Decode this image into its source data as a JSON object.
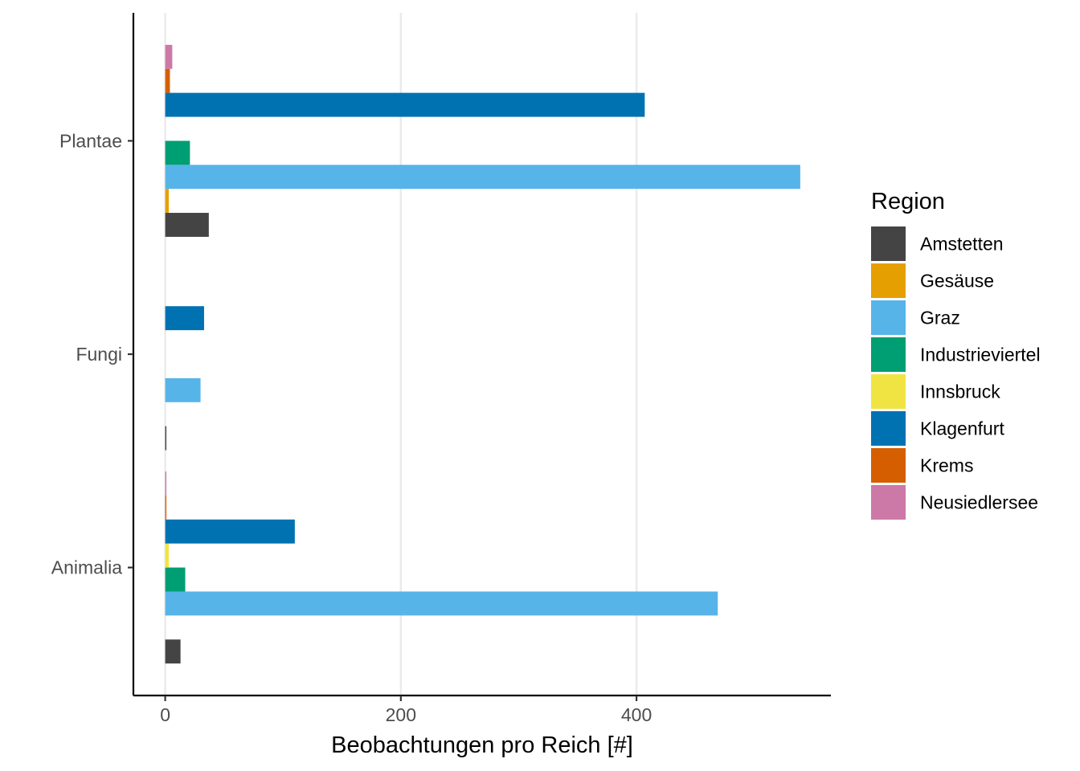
{
  "chart_data": {
    "type": "bar",
    "orientation": "horizontal",
    "position": "dodge",
    "categories": [
      "Animalia",
      "Fungi",
      "Plantae"
    ],
    "xlabel": "Beobachtungen pro Reich [#]",
    "ylabel": "",
    "xlim": [
      -27,
      565
    ],
    "xticks": [
      0,
      200,
      400
    ],
    "xtick_labels": [
      "0",
      "200",
      "400"
    ],
    "grid": "vertical major lines only",
    "legend": {
      "title": "Region",
      "placement": "right"
    },
    "series": [
      {
        "name": "Amstetten",
        "color": "#444444",
        "values": [
          13,
          1,
          37
        ]
      },
      {
        "name": "Gesäuse",
        "color": "#E69F00",
        "values": [
          0,
          0,
          3
        ]
      },
      {
        "name": "Graz",
        "color": "#56B4E9",
        "values": [
          469,
          30,
          539
        ]
      },
      {
        "name": "Industrieviertel",
        "color": "#009E73",
        "values": [
          17,
          0,
          21
        ]
      },
      {
        "name": "Innsbruck",
        "color": "#F0E442",
        "values": [
          3,
          0,
          0
        ]
      },
      {
        "name": "Klagenfurt",
        "color": "#0072B2",
        "values": [
          110,
          33,
          407
        ]
      },
      {
        "name": "Krems",
        "color": "#D55E00",
        "values": [
          1,
          0,
          4
        ]
      },
      {
        "name": "Neusiedlersee",
        "color": "#CC79A7",
        "values": [
          1,
          0,
          6
        ]
      }
    ]
  }
}
